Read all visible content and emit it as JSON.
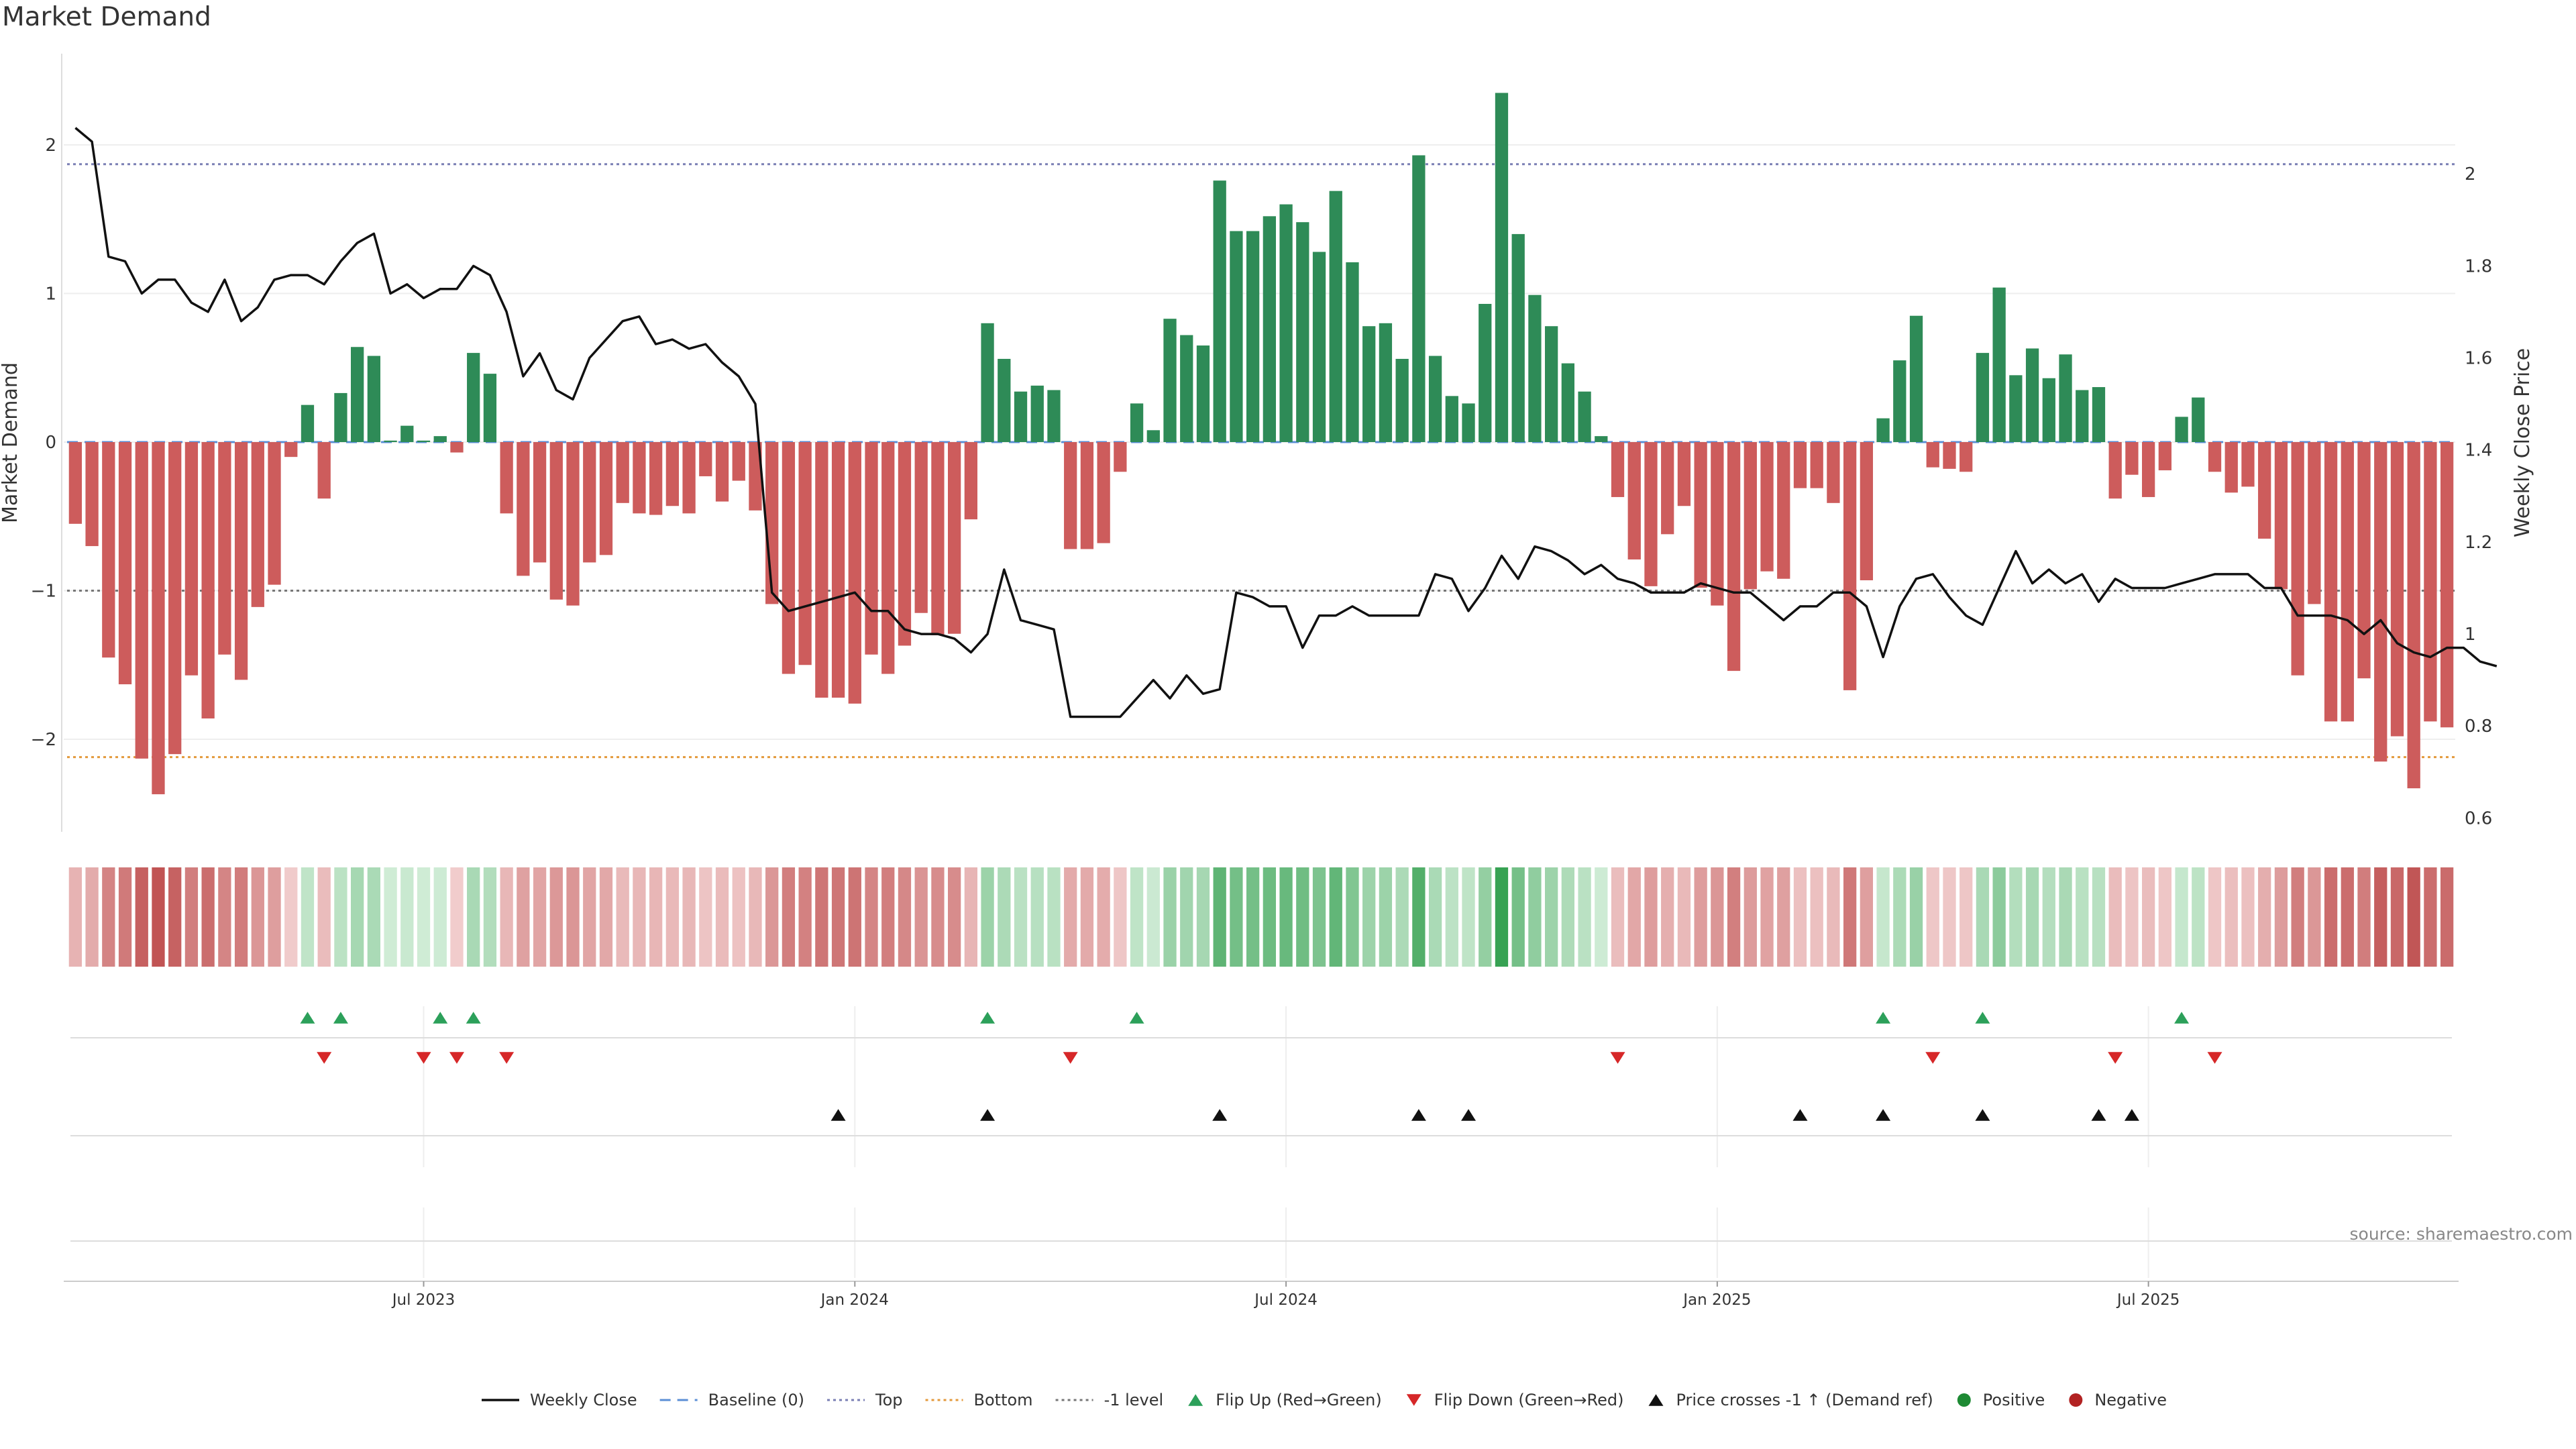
{
  "title": "Market Demand",
  "source": "source: sharemaestro.com",
  "chart_data": {
    "type": "bar+line",
    "left_axis": {
      "label": "Market Demand",
      "ylim": [
        -2.6,
        2.6
      ],
      "ticks": [
        -2,
        -1,
        0,
        1,
        2
      ],
      "tick_labels": [
        "−2",
        "−1",
        "0",
        "1",
        "2"
      ]
    },
    "right_axis": {
      "label": "Weekly Close Price",
      "ylim": [
        0.57,
        2.2
      ],
      "ticks": [
        0.6,
        0.8,
        1,
        1.2,
        1.4,
        1.6,
        1.8,
        2
      ],
      "tick_labels": [
        "0.6",
        "0.8",
        "1",
        "1.2",
        "1.4",
        "1.6",
        "1.8",
        "2"
      ]
    },
    "x_ticks": [
      {
        "index": 21,
        "label": "Jul 2023"
      },
      {
        "index": 47,
        "label": "Jan 2024"
      },
      {
        "index": 73,
        "label": "Jul 2024"
      },
      {
        "index": 99,
        "label": "Jan 2025"
      },
      {
        "index": 125,
        "label": "Jul 2025"
      }
    ],
    "reference_lines": {
      "top": 1.87,
      "bottom": -2.12,
      "minus_one": -1,
      "baseline": 0
    },
    "demand": [
      -0.55,
      -0.7,
      -1.45,
      -1.63,
      -2.13,
      -2.37,
      -2.1,
      -1.57,
      -1.86,
      -1.43,
      -1.6,
      -1.11,
      -0.96,
      -0.1,
      0.25,
      -0.38,
      0.33,
      0.64,
      0.58,
      0.01,
      0.11,
      0.01,
      0.04,
      -0.07,
      0.6,
      0.46,
      -0.48,
      -0.9,
      -0.81,
      -1.06,
      -1.1,
      -0.81,
      -0.76,
      -0.41,
      -0.48,
      -0.49,
      -0.43,
      -0.48,
      -0.23,
      -0.4,
      -0.26,
      -0.46,
      -1.09,
      -1.56,
      -1.5,
      -1.72,
      -1.72,
      -1.76,
      -1.43,
      -1.56,
      -1.37,
      -1.15,
      -1.3,
      -1.29,
      -0.52,
      0.8,
      0.56,
      0.34,
      0.38,
      0.35,
      -0.72,
      -0.72,
      -0.68,
      -0.2,
      0.26,
      0.08,
      0.83,
      0.72,
      0.65,
      1.76,
      1.42,
      1.42,
      1.52,
      1.6,
      1.48,
      1.28,
      1.69,
      1.21,
      0.78,
      0.8,
      0.56,
      1.93,
      0.58,
      0.31,
      0.26,
      0.93,
      2.35,
      1.4,
      0.99,
      0.78,
      0.53,
      0.34,
      0.04,
      -0.37,
      -0.79,
      -0.97,
      -0.62,
      -0.43,
      -0.98,
      -1.1,
      -1.54,
      -0.99,
      -0.87,
      -0.92,
      -0.31,
      -0.31,
      -0.41,
      -1.67,
      -0.93,
      0.16,
      0.55,
      0.85,
      -0.17,
      -0.18,
      -0.2,
      0.6,
      1.04,
      0.45,
      0.63,
      0.43,
      0.59,
      0.35,
      0.37,
      -0.38,
      -0.22,
      -0.37,
      -0.19,
      0.17,
      0.3,
      -0.2,
      -0.34,
      -0.3,
      -0.65,
      -0.99,
      -1.57,
      -1.09,
      -1.88,
      -1.88,
      -1.59,
      -2.15,
      -1.98,
      -2.33,
      -1.88,
      -1.92
    ],
    "price": [
      2.1,
      2.07,
      1.82,
      1.81,
      1.74,
      1.77,
      1.77,
      1.72,
      1.7,
      1.77,
      1.68,
      1.71,
      1.77,
      1.78,
      1.78,
      1.76,
      1.81,
      1.85,
      1.87,
      1.74,
      1.76,
      1.73,
      1.75,
      1.75,
      1.8,
      1.78,
      1.7,
      1.56,
      1.61,
      1.53,
      1.51,
      1.6,
      1.64,
      1.68,
      1.69,
      1.63,
      1.64,
      1.62,
      1.63,
      1.59,
      1.56,
      1.5,
      1.09,
      1.05,
      1.06,
      1.07,
      1.08,
      1.09,
      1.05,
      1.05,
      1.01,
      1.0,
      1.0,
      0.99,
      0.96,
      1.0,
      1.14,
      1.03,
      1.02,
      1.01,
      0.82,
      0.82,
      0.82,
      0.82,
      0.86,
      0.9,
      0.86,
      0.91,
      0.87,
      0.88,
      1.09,
      1.08,
      1.06,
      1.06,
      0.97,
      1.04,
      1.04,
      1.06,
      1.04,
      1.04,
      1.04,
      1.04,
      1.13,
      1.12,
      1.05,
      1.1,
      1.17,
      1.12,
      1.19,
      1.18,
      1.16,
      1.13,
      1.15,
      1.12,
      1.11,
      1.09,
      1.09,
      1.09,
      1.11,
      1.1,
      1.09,
      1.09,
      1.06,
      1.03,
      1.06,
      1.06,
      1.09,
      1.09,
      1.06,
      0.95,
      1.06,
      1.12,
      1.13,
      1.08,
      1.04,
      1.02,
      1.1,
      1.18,
      1.11,
      1.14,
      1.11,
      1.13,
      1.07,
      1.12,
      1.1,
      1.1,
      1.1,
      1.11,
      1.12,
      1.13,
      1.13,
      1.13,
      1.1,
      1.1,
      1.04,
      1.04,
      1.04,
      1.03,
      1.0,
      1.03,
      0.98,
      0.96,
      0.95,
      0.97,
      0.97,
      0.94,
      0.93
    ],
    "flip_up": [
      14,
      16,
      22,
      24,
      55,
      64,
      109,
      115,
      127
    ],
    "flip_down": [
      15,
      21,
      23,
      26,
      60,
      93,
      112,
      123,
      129
    ],
    "price_crosses": [
      46,
      55,
      69,
      81,
      84,
      104,
      109,
      115,
      122,
      124
    ],
    "legend": [
      {
        "label": "Weekly Close",
        "kind": "line",
        "color": "#111111"
      },
      {
        "label": "Baseline (0)",
        "kind": "dash",
        "color": "#5b8fd6"
      },
      {
        "label": "Top",
        "kind": "dot",
        "color": "#7a7fb4"
      },
      {
        "label": "Bottom",
        "kind": "dot",
        "color": "#e39a3c"
      },
      {
        "label": "-1 level",
        "kind": "dot",
        "color": "#777777"
      },
      {
        "label": "Flip Up (Red→Green)",
        "kind": "tri-up",
        "color": "#2ca05a"
      },
      {
        "label": "Flip Down (Green→Red)",
        "kind": "tri-down",
        "color": "#d62728"
      },
      {
        "label": "Price crosses -1 ↑ (Demand ref)",
        "kind": "tri-up",
        "color": "#111111"
      },
      {
        "label": "Positive",
        "kind": "dot-marker",
        "color": "#1e8a34"
      },
      {
        "label": "Negative",
        "kind": "dot-marker",
        "color": "#b22222"
      }
    ],
    "colors": {
      "positive_bar": "#2e8b57",
      "negative_bar": "#cd5c5c",
      "price_line": "#111111"
    }
  }
}
